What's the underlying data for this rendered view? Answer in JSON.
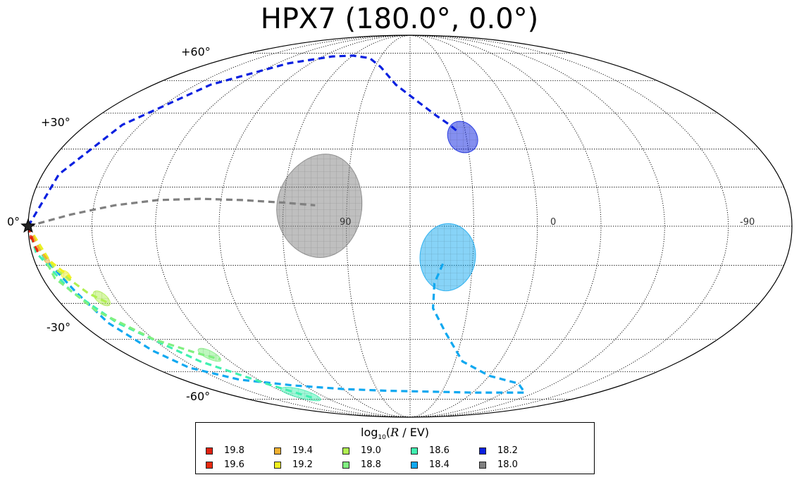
{
  "title": "HPX7 (180.0°, 0.0°)",
  "lat_labels": [
    "+60°",
    "+30°",
    "0°",
    "-30°",
    "-60°"
  ],
  "lon_labels": [
    "90",
    "0",
    "-90"
  ],
  "legend": {
    "title_prefix": "log",
    "title_sub": "10",
    "title_var": "R",
    "title_suffix": " / EV)",
    "items": [
      {
        "label": "19.8",
        "color": "#e02010"
      },
      {
        "label": "19.6",
        "color": "#e82a10"
      },
      {
        "label": "19.4",
        "color": "#f0b030"
      },
      {
        "label": "19.2",
        "color": "#f0f020"
      },
      {
        "label": "19.0",
        "color": "#b0f050"
      },
      {
        "label": "18.8",
        "color": "#80f080"
      },
      {
        "label": "18.6",
        "color": "#40f0b0"
      },
      {
        "label": "18.4",
        "color": "#10a8f0"
      },
      {
        "label": "18.2",
        "color": "#0a20e0"
      },
      {
        "label": "18.0",
        "color": "#808080"
      }
    ]
  },
  "chart_data": {
    "type": "scatter",
    "projection": "mollweide",
    "title": "HPX7 (180.0°, 0.0°)",
    "source_marker": {
      "lon": 180,
      "lat": 0,
      "symbol": "star"
    },
    "grid": true,
    "lat_ticks": [
      60,
      30,
      0,
      -30,
      -60
    ],
    "lon_tick_labels": [
      "90",
      "0",
      "-90"
    ],
    "series": [
      {
        "name": "18.0",
        "color": "#808080",
        "centroid": {
          "lon": 43,
          "lat": 8
        },
        "radius_deg": 20,
        "path": [
          [
            180,
            0
          ],
          [
            160,
            4.5
          ],
          [
            140,
            8
          ],
          [
            120,
            10
          ],
          [
            100,
            10.5
          ],
          [
            80,
            10
          ],
          [
            60,
            9
          ],
          [
            45,
            8
          ]
        ]
      },
      {
        "name": "18.2",
        "color": "#0a20e0",
        "centroid": {
          "lon": -28,
          "lat": 35
        },
        "radius_deg": 6.5,
        "path": [
          [
            180,
            0
          ],
          [
            172,
            20
          ],
          [
            160,
            40
          ],
          [
            140,
            58
          ],
          [
            110,
            69
          ],
          [
            80,
            73
          ],
          [
            60,
            73.5
          ],
          [
            40,
            72
          ],
          [
            25,
            67
          ],
          [
            10,
            58
          ],
          [
            -5,
            50
          ],
          [
            -15,
            44
          ],
          [
            -22,
            40
          ],
          [
            -26,
            37
          ]
        ]
      },
      {
        "name": "18.4",
        "color": "#10a8f0",
        "centroid": {
          "lon": -18,
          "lat": -12
        },
        "radius_deg": 13,
        "path": [
          [
            180,
            0
          ],
          [
            175,
            -12
          ],
          [
            168,
            -25
          ],
          [
            165,
            -38
          ],
          [
            160,
            -50
          ],
          [
            155,
            -58
          ],
          [
            135,
            -64
          ],
          [
            100,
            -67
          ],
          [
            60,
            -69
          ],
          [
            20,
            -70
          ],
          [
            -20,
            -70.5
          ],
          [
            -60,
            -71
          ],
          [
            -90,
            -71
          ],
          [
            -110,
            -71
          ],
          [
            -90,
            -66
          ],
          [
            -60,
            -62
          ],
          [
            -35,
            -55
          ],
          [
            -20,
            -42
          ],
          [
            -12,
            -32
          ],
          [
            -12,
            -22
          ],
          [
            -16,
            -14
          ]
        ]
      },
      {
        "name": "18.6",
        "color": "#40f0b0",
        "centroid": {
          "lon": 108,
          "lat": -72
        },
        "radius_deg": 4,
        "path": [
          [
            180,
            0
          ],
          [
            178,
            -10
          ],
          [
            170,
            -25
          ],
          [
            160,
            -38
          ],
          [
            140,
            -55
          ],
          [
            120,
            -66
          ],
          [
            105,
            -74
          ]
        ]
      },
      {
        "name": "18.8",
        "color": "#80f080",
        "centroid": {
          "lon": 128,
          "lat": -52
        },
        "radius_deg": 3,
        "path": [
          [
            180,
            0
          ],
          [
            174,
            -20
          ],
          [
            165,
            -33
          ],
          [
            150,
            -45
          ],
          [
            135,
            -51
          ],
          [
            125,
            -54
          ]
        ]
      },
      {
        "name": "19.0",
        "color": "#b0f050",
        "centroid": {
          "lon": 157,
          "lat": -28
        },
        "radius_deg": 3,
        "path": [
          [
            180,
            0
          ],
          [
            172,
            -16
          ],
          [
            162,
            -26
          ],
          [
            155,
            -30
          ]
        ]
      },
      {
        "name": "19.2",
        "color": "#f0f020",
        "centroid": {
          "lon": 168,
          "lat": -19
        },
        "radius_deg": 2,
        "path": [
          [
            180,
            0
          ],
          [
            173,
            -13
          ],
          [
            166,
            -20
          ]
        ]
      },
      {
        "name": "19.4",
        "color": "#f0b030",
        "centroid": {
          "lon": 174,
          "lat": -13
        },
        "radius_deg": 1.2,
        "path": [
          [
            180,
            0
          ],
          [
            176,
            -9
          ],
          [
            173,
            -14
          ]
        ]
      },
      {
        "name": "19.6",
        "color": "#e82a10",
        "centroid": {
          "lon": 177.5,
          "lat": -9
        },
        "radius_deg": 0.8,
        "path": [
          [
            180,
            0
          ],
          [
            178,
            -7
          ],
          [
            177,
            -10
          ]
        ]
      },
      {
        "name": "19.8",
        "color": "#e02010",
        "centroid": {
          "lon": 179,
          "lat": -4
        },
        "radius_deg": 0.5,
        "path": [
          [
            180,
            0
          ],
          [
            179.3,
            -3
          ],
          [
            179,
            -5
          ]
        ]
      }
    ]
  }
}
